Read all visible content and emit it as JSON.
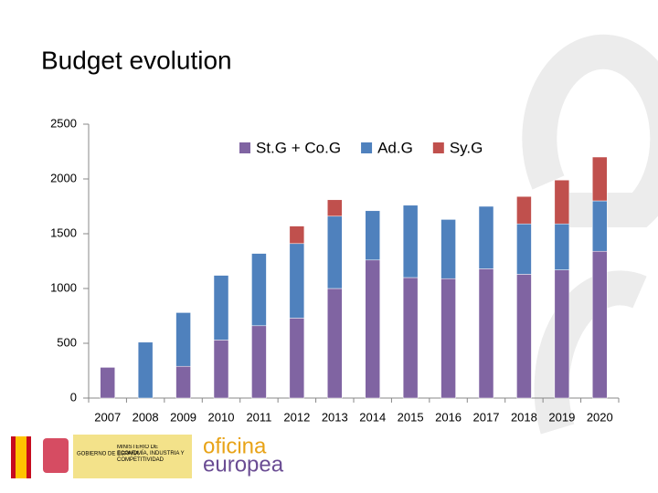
{
  "chart_data": {
    "type": "stacked_bar",
    "title": "Budget evolution",
    "categories": [
      "2007",
      "2008",
      "2009",
      "2010",
      "2011",
      "2012",
      "2013",
      "2014",
      "2015",
      "2016",
      "2017",
      "2018",
      "2019",
      "2020"
    ],
    "series": [
      {
        "name": "St.G + Co.G",
        "color": "#8064a2",
        "values": [
          280,
          0,
          290,
          530,
          660,
          730,
          1000,
          1260,
          1100,
          1090,
          1180,
          1130,
          1170,
          1340
        ]
      },
      {
        "name": "Ad.G",
        "color": "#4f81bd",
        "values": [
          0,
          510,
          490,
          590,
          660,
          680,
          660,
          450,
          660,
          540,
          570,
          460,
          420,
          460
        ]
      },
      {
        "name": "Sy.G",
        "color": "#c0504d",
        "values": [
          0,
          0,
          0,
          0,
          0,
          160,
          150,
          0,
          0,
          0,
          0,
          250,
          400,
          400
        ]
      }
    ],
    "ylim": [
      0,
      2500
    ],
    "yticks": [
      0,
      500,
      1000,
      1500,
      2000,
      2500
    ],
    "grid": false,
    "legend": "top"
  },
  "footer": {
    "government": "GOBIERNO DE ESPAÑA",
    "ministry": "MINISTERIO DE ECONOMÍA, INDUSTRIA Y COMPETITIVIDAD",
    "logo_line1": "oficina",
    "logo_line2": "europea"
  }
}
